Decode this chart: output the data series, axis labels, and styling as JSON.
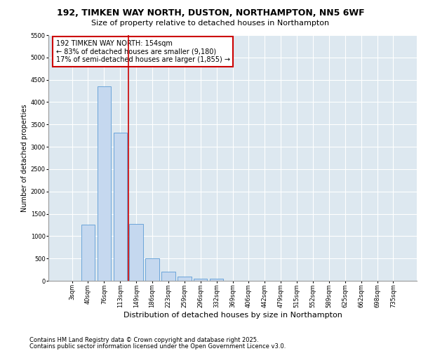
{
  "title1": "192, TIMKEN WAY NORTH, DUSTON, NORTHAMPTON, NN5 6WF",
  "title2": "Size of property relative to detached houses in Northampton",
  "xlabel": "Distribution of detached houses by size in Northampton",
  "ylabel": "Number of detached properties",
  "bar_labels": [
    "3sqm",
    "40sqm",
    "76sqm",
    "113sqm",
    "149sqm",
    "186sqm",
    "223sqm",
    "259sqm",
    "296sqm",
    "332sqm",
    "369sqm",
    "406sqm",
    "442sqm",
    "479sqm",
    "515sqm",
    "552sqm",
    "589sqm",
    "625sqm",
    "662sqm",
    "698sqm",
    "735sqm"
  ],
  "bar_values": [
    0,
    1260,
    4350,
    3320,
    1275,
    500,
    210,
    90,
    55,
    40,
    0,
    0,
    0,
    0,
    0,
    0,
    0,
    0,
    0,
    0,
    0
  ],
  "bar_color": "#c5d8ef",
  "bar_edge_color": "#5b9bd5",
  "background_color": "#dde8f0",
  "grid_color": "#ffffff",
  "vline_color": "#cc0000",
  "vline_position": 3.5,
  "annotation_text": "192 TIMKEN WAY NORTH: 154sqm\n← 83% of detached houses are smaller (9,180)\n17% of semi-detached houses are larger (1,855) →",
  "annotation_box_color": "#cc0000",
  "ylim": [
    0,
    5500
  ],
  "yticks": [
    0,
    500,
    1000,
    1500,
    2000,
    2500,
    3000,
    3500,
    4000,
    4500,
    5000,
    5500
  ],
  "footer1": "Contains HM Land Registry data © Crown copyright and database right 2025.",
  "footer2": "Contains public sector information licensed under the Open Government Licence v3.0.",
  "title1_fontsize": 9,
  "title2_fontsize": 8,
  "xlabel_fontsize": 8,
  "ylabel_fontsize": 7,
  "tick_fontsize": 6,
  "annotation_fontsize": 7,
  "footer_fontsize": 6
}
